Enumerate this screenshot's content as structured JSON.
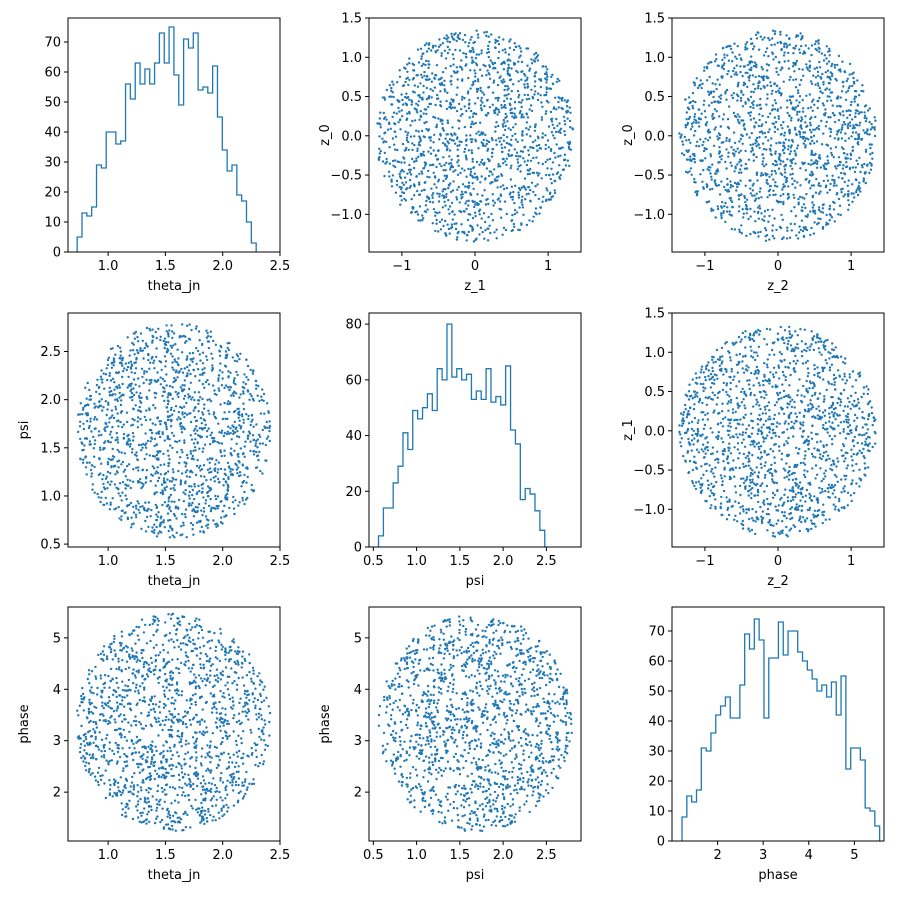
{
  "figure": {
    "background": "#ffffff",
    "point_color": "#1f77b4",
    "line_color": "#1f77b4"
  },
  "chart_data": [
    {
      "type": "histogram",
      "xlabel": "theta_jn",
      "ylabel": "",
      "xlim": [
        0.65,
        2.5
      ],
      "ylim": [
        0,
        78
      ],
      "xticks": [
        1.0,
        1.5,
        2.0,
        2.5
      ],
      "xtick_labels": [
        "1.0",
        "1.5",
        "2.0",
        "2.5"
      ],
      "yticks": [
        0,
        10,
        20,
        30,
        40,
        50,
        60,
        70
      ],
      "ytick_labels": [
        "0",
        "10",
        "20",
        "30",
        "40",
        "50",
        "60",
        "70"
      ],
      "bin_start": 0.73,
      "bin_width": 0.04222,
      "counts": [
        5,
        13,
        12,
        15,
        29,
        28,
        40,
        40,
        36,
        37,
        56,
        51,
        63,
        56,
        61,
        56,
        63,
        73,
        63,
        75,
        59,
        49,
        71,
        68,
        73,
        54,
        55,
        53,
        62,
        45,
        34,
        27,
        29,
        19,
        17,
        10,
        3
      ]
    },
    {
      "type": "scatter",
      "xlabel": "z_1",
      "ylabel": "z_0",
      "xlim": [
        -1.45,
        1.45
      ],
      "ylim": [
        -1.48,
        1.5
      ],
      "xticks": [
        -1,
        0,
        1
      ],
      "xtick_labels": [
        "−1",
        "0",
        "1"
      ],
      "yticks": [
        -1.0,
        -0.5,
        0.0,
        0.5,
        1.0,
        1.5
      ],
      "ytick_labels": [
        "−1.0",
        "−0.5",
        "0.0",
        "0.5",
        "1.0",
        "1.5"
      ],
      "distribution": "uniform_disk",
      "cx": 0,
      "cy": 0,
      "rx": 1.35,
      "ry": 1.35,
      "n_points": 1500,
      "seed": 11
    },
    {
      "type": "scatter",
      "xlabel": "z_2",
      "ylabel": "z_0",
      "xlim": [
        -1.45,
        1.45
      ],
      "ylim": [
        -1.48,
        1.5
      ],
      "xticks": [
        -1,
        0,
        1
      ],
      "xtick_labels": [
        "−1",
        "0",
        "1"
      ],
      "yticks": [
        -1.0,
        -0.5,
        0.0,
        0.5,
        1.0,
        1.5
      ],
      "ytick_labels": [
        "−1.0",
        "−0.5",
        "0.0",
        "0.5",
        "1.0",
        "1.5"
      ],
      "distribution": "uniform_disk",
      "cx": 0,
      "cy": 0,
      "rx": 1.35,
      "ry": 1.35,
      "n_points": 1500,
      "seed": 23
    },
    {
      "type": "scatter",
      "xlabel": "theta_jn",
      "ylabel": "psi",
      "xlim": [
        0.65,
        2.5
      ],
      "ylim": [
        0.47,
        2.9
      ],
      "xticks": [
        1.0,
        1.5,
        2.0,
        2.5
      ],
      "xtick_labels": [
        "1.0",
        "1.5",
        "2.0",
        "2.5"
      ],
      "yticks": [
        0.5,
        1.0,
        1.5,
        2.0,
        2.5
      ],
      "ytick_labels": [
        "0.5",
        "1.0",
        "1.5",
        "2.0",
        "2.5"
      ],
      "distribution": "uniform_disk",
      "cx": 1.57,
      "cy": 1.68,
      "rx": 0.85,
      "ry": 1.12,
      "n_points": 1500,
      "seed": 37
    },
    {
      "type": "histogram",
      "xlabel": "psi",
      "ylabel": "",
      "xlim": [
        0.45,
        2.9
      ],
      "ylim": [
        0,
        84
      ],
      "xticks": [
        0.5,
        1.0,
        1.5,
        2.0,
        2.5
      ],
      "xtick_labels": [
        "0.5",
        "1.0",
        "1.5",
        "2.0",
        "2.5"
      ],
      "yticks": [
        0,
        20,
        40,
        60,
        80
      ],
      "ytick_labels": [
        "0",
        "20",
        "40",
        "60",
        "80"
      ],
      "bin_start": 0.56,
      "bin_width": 0.05651,
      "counts": [
        4,
        14,
        14,
        23,
        29,
        41,
        35,
        49,
        46,
        50,
        55,
        49,
        64,
        60,
        80,
        61,
        64,
        60,
        62,
        53,
        56,
        53,
        64,
        52,
        54,
        51,
        65,
        42,
        37,
        17,
        21,
        19,
        13,
        6
      ]
    },
    {
      "type": "scatter",
      "xlabel": "z_2",
      "ylabel": "z_1",
      "xlim": [
        -1.45,
        1.45
      ],
      "ylim": [
        -1.48,
        1.5
      ],
      "xticks": [
        -1,
        0,
        1
      ],
      "xtick_labels": [
        "−1",
        "0",
        "1"
      ],
      "yticks": [
        -1.0,
        -0.5,
        0.0,
        0.5,
        1.0,
        1.5
      ],
      "ytick_labels": [
        "−1.0",
        "−0.5",
        "0.0",
        "0.5",
        "1.0",
        "1.5"
      ],
      "distribution": "uniform_disk",
      "cx": 0,
      "cy": 0,
      "rx": 1.35,
      "ry": 1.35,
      "n_points": 1500,
      "seed": 53
    },
    {
      "type": "scatter",
      "xlabel": "theta_jn",
      "ylabel": "phase",
      "xlim": [
        0.65,
        2.5
      ],
      "ylim": [
        1.05,
        5.6
      ],
      "xticks": [
        1.0,
        1.5,
        2.0,
        2.5
      ],
      "xtick_labels": [
        "1.0",
        "1.5",
        "2.0",
        "2.5"
      ],
      "yticks": [
        2,
        3,
        4,
        5
      ],
      "ytick_labels": [
        "2",
        "3",
        "4",
        "5"
      ],
      "distribution": "uniform_disk",
      "cx": 1.57,
      "cy": 3.35,
      "rx": 0.85,
      "ry": 2.12,
      "n_points": 1500,
      "seed": 71
    },
    {
      "type": "scatter",
      "xlabel": "psi",
      "ylabel": "phase",
      "xlim": [
        0.45,
        2.9
      ],
      "ylim": [
        1.05,
        5.6
      ],
      "xticks": [
        0.5,
        1.0,
        1.5,
        2.0,
        2.5
      ],
      "xtick_labels": [
        "0.5",
        "1.0",
        "1.5",
        "2.0",
        "2.5"
      ],
      "yticks": [
        2,
        3,
        4,
        5
      ],
      "ytick_labels": [
        "2",
        "3",
        "4",
        "5"
      ],
      "distribution": "uniform_disk",
      "cx": 1.68,
      "cy": 3.35,
      "rx": 1.12,
      "ry": 2.12,
      "n_points": 1500,
      "seed": 89
    },
    {
      "type": "histogram",
      "xlabel": "phase",
      "ylabel": "",
      "xlim": [
        1.0,
        5.65
      ],
      "ylim": [
        0,
        78
      ],
      "xticks": [
        2,
        3,
        4,
        5
      ],
      "xtick_labels": [
        "2",
        "3",
        "4",
        "5"
      ],
      "yticks": [
        0,
        10,
        20,
        30,
        40,
        50,
        60,
        70
      ],
      "ytick_labels": [
        "0",
        "10",
        "20",
        "30",
        "40",
        "50",
        "60",
        "70"
      ],
      "bin_start": 1.22,
      "bin_width": 0.10571,
      "counts": [
        8,
        15,
        13,
        17,
        31,
        30,
        36,
        42,
        45,
        48,
        41,
        41,
        52,
        69,
        64,
        74,
        67,
        41,
        61,
        61,
        73,
        62,
        70,
        70,
        63,
        60,
        57,
        54,
        50,
        52,
        48,
        53,
        42,
        55,
        24,
        31,
        31,
        27,
        11,
        10,
        5
      ]
    }
  ]
}
